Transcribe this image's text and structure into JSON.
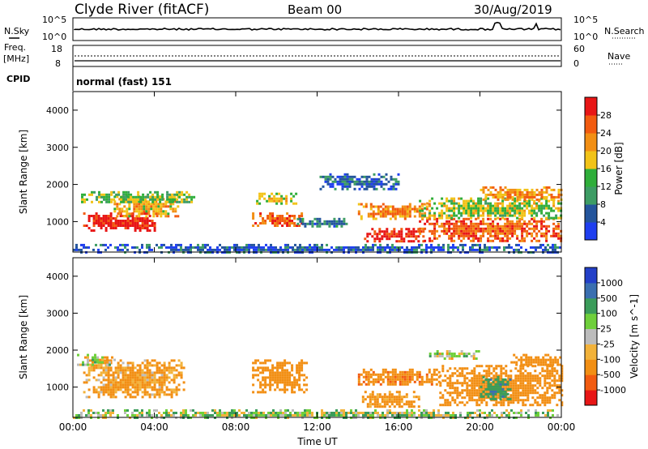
{
  "header": {
    "station": "Clyde River (fitACF)",
    "beam": "Beam 00",
    "date": "30/Aug/2019"
  },
  "top_panels": {
    "nsky_label": "N.Sky",
    "nsearch_label": "N.Search",
    "freq_label": "Freq.",
    "freq_unit": "[MHz]",
    "nave_label": "Nave",
    "cpid_label": "CPID",
    "cpid_value": "normal (fast) 151",
    "noise_ticks": [
      "10^5",
      "10^0"
    ],
    "freq_ticks": [
      "18",
      "8"
    ],
    "nave_ticks": [
      "60",
      "0"
    ]
  },
  "colors": {
    "power": [
      "#1f3ff0",
      "#24559c",
      "#3d9c64",
      "#2fae3a",
      "#f2c318",
      "#f28f14",
      "#f25b10",
      "#e81616"
    ],
    "velocity": [
      "#e81616",
      "#f25b10",
      "#f28f14",
      "#f2b23a",
      "#bcbcbc",
      "#6fcf3b",
      "#3b9c5a",
      "#3a6fb0",
      "#2340c8"
    ]
  },
  "chart_data": [
    {
      "type": "heatmap",
      "name": "power",
      "ylabel": "Slant Range [km]",
      "colorbar_label": "Power [dB]",
      "colorbar_ticks": [
        "28",
        "24",
        "20",
        "16",
        "12",
        "8",
        "4"
      ],
      "x_ticks": [
        "00:00",
        "04:00",
        "08:00",
        "12:00",
        "16:00",
        "20:00",
        "00:00"
      ],
      "y_ticks": [
        "4000",
        "3000",
        "2000",
        "1000"
      ],
      "xlim_hours": [
        0,
        24
      ],
      "ylim_km": [
        180,
        4500
      ],
      "blobs": [
        {
          "t0": 0.5,
          "t1": 4.2,
          "r0": 780,
          "r1": 1250,
          "v": 30
        },
        {
          "t0": 2.0,
          "t1": 5.2,
          "r0": 1150,
          "r1": 1700,
          "v": 20
        },
        {
          "t0": 0.4,
          "t1": 6.0,
          "r0": 1500,
          "r1": 1820,
          "v": 14
        },
        {
          "t0": 8.8,
          "t1": 11.2,
          "r0": 900,
          "r1": 1250,
          "v": 26
        },
        {
          "t0": 9.0,
          "t1": 11.0,
          "r0": 1500,
          "r1": 1780,
          "v": 18
        },
        {
          "t0": 11.0,
          "t1": 13.5,
          "r0": 900,
          "r1": 1100,
          "v": 8
        },
        {
          "t0": 14.3,
          "t1": 17.2,
          "r0": 500,
          "r1": 830,
          "v": 30
        },
        {
          "t0": 14.0,
          "t1": 17.5,
          "r0": 1100,
          "r1": 1500,
          "v": 22
        },
        {
          "t0": 17.0,
          "t1": 24.0,
          "r0": 500,
          "r1": 1100,
          "v": 26
        },
        {
          "t0": 17.0,
          "t1": 24.0,
          "r0": 1100,
          "r1": 1650,
          "v": 16
        },
        {
          "t0": 20.0,
          "t1": 24.0,
          "r0": 1600,
          "r1": 1950,
          "v": 22
        },
        {
          "t0": 12.0,
          "t1": 16.0,
          "r0": 1900,
          "r1": 2300,
          "v": 6
        },
        {
          "t0": 0.0,
          "t1": 24.0,
          "r0": 200,
          "r1": 400,
          "v": 5
        }
      ]
    },
    {
      "type": "heatmap",
      "name": "velocity",
      "ylabel": "Slant Range [km]",
      "xlabel": "Time UT",
      "colorbar_label": "Velocity [m s^-1]",
      "colorbar_ticks": [
        "1000",
        "500",
        "100",
        "25",
        "-25",
        "-100",
        "-500",
        "-1000"
      ],
      "x_ticks": [
        "00:00",
        "04:00",
        "08:00",
        "12:00",
        "16:00",
        "20:00",
        "00:00"
      ],
      "y_ticks": [
        "4000",
        "3000",
        "2000",
        "1000"
      ],
      "xlim_hours": [
        0,
        24
      ],
      "ylim_km": [
        180,
        4500
      ],
      "blobs": [
        {
          "t0": 0.5,
          "t1": 5.5,
          "r0": 750,
          "r1": 1750,
          "v": -150
        },
        {
          "t0": 0.2,
          "t1": 2.0,
          "r0": 1600,
          "r1": 1900,
          "v": 0
        },
        {
          "t0": 8.8,
          "t1": 11.5,
          "r0": 850,
          "r1": 1750,
          "v": -300
        },
        {
          "t0": 14.2,
          "t1": 17.0,
          "r0": 450,
          "r1": 900,
          "v": -200
        },
        {
          "t0": 14.0,
          "t1": 18.0,
          "r0": 1050,
          "r1": 1500,
          "v": -400
        },
        {
          "t0": 18.0,
          "t1": 24.0,
          "r0": 500,
          "r1": 1600,
          "v": -250
        },
        {
          "t0": 20.0,
          "t1": 21.5,
          "r0": 700,
          "r1": 1300,
          "v": 400
        },
        {
          "t0": 21.5,
          "t1": 24.0,
          "r0": 1600,
          "r1": 1900,
          "v": -250
        },
        {
          "t0": 17.5,
          "t1": 20.0,
          "r0": 1800,
          "r1": 2000,
          "v": 0
        },
        {
          "t0": 0.0,
          "t1": 24.0,
          "r0": 200,
          "r1": 400,
          "v": 60
        }
      ]
    }
  ]
}
